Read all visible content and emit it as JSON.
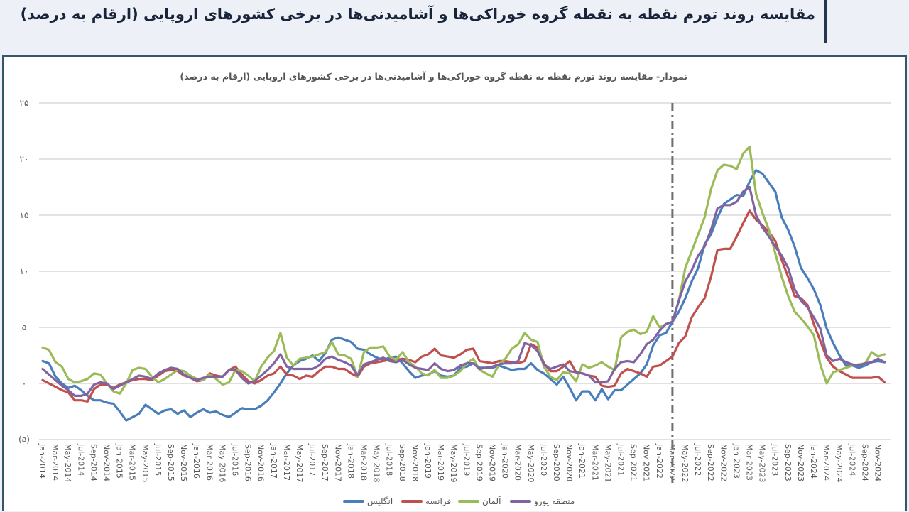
{
  "header": {
    "title": "مقایسه روند تورم نقطه به نقطه گروه خوراکی‌ها و آشامیدنی‌ها در برخی کشورهای اروپایی (ارقام به درصد)"
  },
  "chart_data": {
    "type": "line",
    "title": "نمودار- مقایسه روند تورم نقطه به نقطه گروه خوراکی‌ها و آشامیدنی‌ها در برخی کشورهای اروپایی (ارقام به درصد)",
    "xlabel": "",
    "ylabel": "",
    "x_start": "Jan-2014",
    "x_end": "Dec-2024",
    "x_frequency": "monthly",
    "ylim": [
      -5,
      25
    ],
    "y_ticks": [
      25,
      20,
      15,
      10,
      5,
      0,
      -5
    ],
    "y_tick_labels": [
      "۲۵",
      "۲۰",
      "۱۵",
      "۱۰",
      "۵",
      "۰",
      "(۵)"
    ],
    "x_tick_labels": [
      "Jan-2014",
      "Mar-2014",
      "May-2014",
      "Jul-2014",
      "Sep-2014",
      "Nov-2014",
      "Jan-2015",
      "Mar-2015",
      "May-2015",
      "Jul-2015",
      "Sep-2015",
      "Nov-2015",
      "Jan-2016",
      "Mar-2016",
      "May-2016",
      "Jul-2016",
      "Sep-2016",
      "Nov-2016",
      "Jan-2017",
      "Mar-2017",
      "May-2017",
      "Jul-2017",
      "Sep-2017",
      "Nov-2017",
      "Jan-2018",
      "Mar-2018",
      "May-2018",
      "Jul-2018",
      "Sep-2018",
      "Nov-2018",
      "Jan-2019",
      "Mar-2019",
      "May-2019",
      "Jul-2019",
      "Sep-2019",
      "Nov-2019",
      "Jan-2020",
      "Mar-2020",
      "May-2020",
      "Jul-2020",
      "Sep-2020",
      "Nov-2020",
      "Jan-2021",
      "Mar-2021",
      "May-2021",
      "Jul-2021",
      "Sep-2021",
      "Nov-2021",
      "Jan-2022",
      "Mar-2022",
      "May-2022",
      "Jul-2022",
      "Sep-2022",
      "Nov-2022",
      "Jan-2023",
      "Mar-2023",
      "May-2023",
      "Jul-2023",
      "Sep-2023",
      "Nov-2023",
      "Jan-2024",
      "Mar-2024",
      "May-2024",
      "Jul-2024",
      "Sep-2024",
      "Nov-2024"
    ],
    "grid": true,
    "legend_position": "bottom",
    "vertical_marker": {
      "x": "Mar-2022",
      "style": "dash-dot",
      "color": "#6e6e6e"
    },
    "series": [
      {
        "name": "انگلیس",
        "color": "#4a7ebb",
        "values": [
          2.0,
          1.8,
          0.6,
          0.0,
          -0.4,
          -0.2,
          -0.6,
          -1.1,
          -1.5,
          -1.5,
          -1.7,
          -1.8,
          -2.5,
          -3.3,
          -3.0,
          -2.7,
          -1.9,
          -2.3,
          -2.7,
          -2.4,
          -2.3,
          -2.7,
          -2.4,
          -3.0,
          -2.6,
          -2.3,
          -2.6,
          -2.5,
          -2.8,
          -3.0,
          -2.6,
          -2.2,
          -2.3,
          -2.3,
          -2.0,
          -1.5,
          -0.8,
          0.0,
          0.9,
          1.6,
          2.0,
          2.2,
          2.5,
          2.0,
          2.7,
          3.9,
          4.1,
          3.9,
          3.7,
          3.1,
          3.0,
          2.6,
          2.3,
          2.1,
          2.3,
          2.4,
          1.8,
          1.1,
          0.5,
          0.7,
          0.8,
          1.1,
          0.7,
          0.6,
          0.7,
          1.4,
          1.5,
          1.8,
          1.4,
          1.4,
          1.4,
          1.6,
          1.4,
          1.2,
          1.3,
          1.3,
          1.8,
          1.2,
          0.9,
          0.4,
          -0.1,
          0.6,
          -0.4,
          -1.5,
          -0.7,
          -0.7,
          -1.5,
          -0.5,
          -1.4,
          -0.6,
          -0.6,
          -0.1,
          0.4,
          0.9,
          1.7,
          3.4,
          4.3,
          4.5,
          5.5,
          6.4,
          7.6,
          9.1,
          10.3,
          12.4,
          13.3,
          14.8,
          16.0,
          16.4,
          16.8,
          16.7,
          18.0,
          19.0,
          18.7,
          17.9,
          17.1,
          14.8,
          13.7,
          12.2,
          10.3,
          9.4,
          8.4,
          7.0,
          4.9,
          3.6,
          2.5,
          1.6,
          1.6,
          1.4,
          1.6,
          1.9,
          2.0,
          1.9
        ]
      },
      {
        "name": "فرانسه",
        "color": "#c0504d",
        "values": [
          0.3,
          0.0,
          -0.3,
          -0.6,
          -0.8,
          -1.5,
          -1.5,
          -1.6,
          -0.5,
          -0.1,
          -0.1,
          -0.4,
          -0.1,
          0.1,
          0.3,
          0.4,
          0.4,
          0.3,
          0.7,
          1.1,
          1.2,
          1.1,
          0.7,
          0.5,
          0.2,
          0.3,
          0.9,
          0.7,
          0.6,
          1.2,
          1.5,
          0.8,
          0.2,
          0.0,
          0.3,
          0.7,
          0.9,
          1.5,
          0.8,
          0.7,
          0.4,
          0.7,
          0.6,
          1.1,
          1.5,
          1.5,
          1.3,
          1.3,
          0.9,
          0.6,
          1.5,
          1.8,
          1.9,
          2.0,
          2.1,
          2.1,
          2.2,
          2.1,
          1.9,
          2.4,
          2.6,
          3.1,
          2.5,
          2.4,
          2.3,
          2.6,
          3.0,
          3.1,
          2.0,
          1.9,
          1.8,
          2.0,
          2.0,
          1.9,
          1.8,
          2.0,
          3.5,
          3.2,
          1.8,
          1.1,
          1.1,
          1.5,
          2.0,
          1.0,
          0.9,
          0.7,
          0.6,
          -0.2,
          -0.3,
          -0.2,
          0.9,
          1.3,
          1.1,
          0.9,
          0.6,
          1.5,
          1.6,
          2.0,
          2.4,
          3.6,
          4.2,
          5.9,
          6.8,
          7.6,
          9.5,
          11.9,
          12.0,
          12.0,
          13.1,
          14.3,
          15.4,
          14.6,
          14.1,
          13.5,
          12.7,
          11.0,
          9.5,
          7.8,
          7.6,
          7.0,
          5.3,
          3.8,
          2.3,
          1.5,
          1.1,
          0.8,
          0.5,
          0.5,
          0.5,
          0.5,
          0.6,
          0.1
        ]
      },
      {
        "name": "آلمان",
        "color": "#9bbb59",
        "values": [
          3.2,
          3.0,
          1.9,
          1.5,
          0.4,
          0.1,
          0.2,
          0.4,
          0.9,
          0.8,
          0.0,
          -0.7,
          -0.9,
          0.0,
          1.2,
          1.4,
          1.3,
          0.6,
          0.1,
          0.4,
          0.8,
          1.2,
          1.1,
          0.7,
          0.4,
          0.3,
          0.8,
          0.4,
          -0.1,
          0.1,
          1.2,
          1.1,
          0.7,
          0.2,
          1.5,
          2.3,
          2.9,
          4.5,
          2.3,
          1.6,
          2.2,
          2.3,
          2.4,
          2.6,
          2.8,
          3.7,
          2.6,
          2.5,
          2.2,
          0.6,
          2.8,
          3.2,
          3.2,
          3.3,
          2.4,
          2.1,
          2.8,
          1.9,
          1.5,
          0.9,
          0.7,
          1.2,
          0.5,
          0.5,
          0.7,
          1.1,
          1.8,
          2.2,
          1.2,
          0.9,
          0.6,
          1.7,
          2.2,
          3.1,
          3.5,
          4.5,
          3.9,
          3.7,
          1.5,
          0.6,
          0.3,
          1.0,
          0.9,
          0.2,
          1.7,
          1.4,
          1.6,
          1.9,
          1.5,
          1.2,
          4.1,
          4.6,
          4.8,
          4.4,
          4.6,
          6.0,
          5.0,
          5.3,
          5.5,
          7.4,
          10.3,
          11.8,
          13.3,
          14.8,
          17.3,
          19.0,
          19.5,
          19.4,
          19.1,
          20.5,
          21.1,
          16.9,
          15.2,
          13.7,
          11.6,
          9.5,
          7.8,
          6.4,
          5.8,
          5.1,
          4.3,
          1.7,
          0.0,
          1.0,
          1.2,
          1.4,
          1.6,
          1.7,
          1.8,
          2.8,
          2.4,
          2.6
        ]
      },
      {
        "name": "منطقه یورو",
        "color": "#8064a2",
        "values": [
          1.3,
          0.8,
          0.3,
          -0.2,
          -0.6,
          -1.1,
          -1.1,
          -0.9,
          -0.1,
          0.1,
          0.0,
          -0.5,
          -0.2,
          0.1,
          0.4,
          0.7,
          0.6,
          0.4,
          0.9,
          1.2,
          1.4,
          1.3,
          0.8,
          0.5,
          0.3,
          0.5,
          0.6,
          0.6,
          0.6,
          1.2,
          1.2,
          0.5,
          0.0,
          0.2,
          0.7,
          1.2,
          1.8,
          2.6,
          1.5,
          1.3,
          1.3,
          1.3,
          1.3,
          1.6,
          2.2,
          2.4,
          2.1,
          1.9,
          1.6,
          0.7,
          1.7,
          1.9,
          2.1,
          2.3,
          2.0,
          1.9,
          2.1,
          1.7,
          1.4,
          1.3,
          1.2,
          1.8,
          1.3,
          1.1,
          1.2,
          1.6,
          1.8,
          1.8,
          1.3,
          1.4,
          1.5,
          1.7,
          1.8,
          1.8,
          2.0,
          3.6,
          3.4,
          2.9,
          1.7,
          1.3,
          1.5,
          1.7,
          1.1,
          1.0,
          0.9,
          0.7,
          0.1,
          0.1,
          0.2,
          1.3,
          1.9,
          2.0,
          1.9,
          2.6,
          3.5,
          3.9,
          4.7,
          5.3,
          5.5,
          7.4,
          9.1,
          10.1,
          11.4,
          12.2,
          13.7,
          15.6,
          15.9,
          15.9,
          16.2,
          17.1,
          17.5,
          15.0,
          13.9,
          13.1,
          12.2,
          11.4,
          10.3,
          8.4,
          7.4,
          6.8,
          5.9,
          4.9,
          2.5,
          2.0,
          2.2,
          1.9,
          1.7,
          1.6,
          1.8,
          1.9,
          2.2,
          1.9
        ]
      }
    ]
  }
}
